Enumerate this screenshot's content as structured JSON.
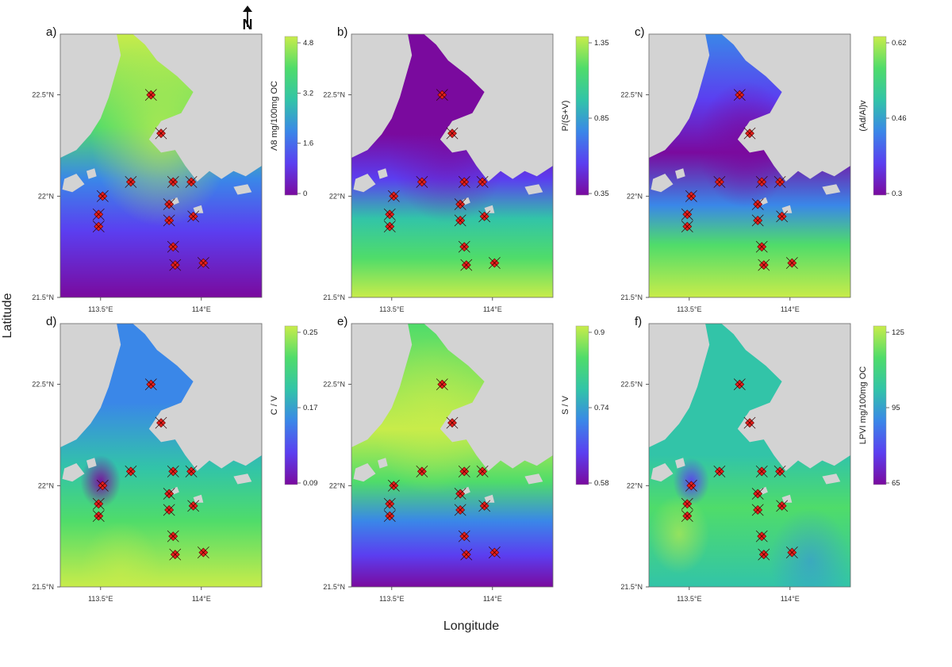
{
  "figure": {
    "north_label": "N",
    "xlabel": "Longitude",
    "ylabel": "Latitude",
    "lat_ticks": [
      "22.5°N",
      "22°N",
      "21.5°N"
    ],
    "lon_ticks": [
      "113.5°E",
      "114°E"
    ]
  },
  "colors": {
    "land": "#d3d3d3",
    "marker": "#e8201c",
    "ramp": [
      "#7a0a9e",
      "#5b3ef0",
      "#3a87e8",
      "#32c4a8",
      "#4fdc6a",
      "#c8ec4a"
    ]
  },
  "panels": [
    {
      "label": "a)",
      "colorbar_title": "Λ8 mg/100mg OC",
      "colorbar_ticks": [
        "4.8",
        "3.2",
        "1.6",
        "0"
      ],
      "field": "a"
    },
    {
      "label": "b)",
      "colorbar_title": "P/(S+V)",
      "colorbar_ticks": [
        "1.35",
        "0.85",
        "0.35"
      ],
      "field": "b"
    },
    {
      "label": "c)",
      "colorbar_title": "(Ad/Al)v",
      "colorbar_ticks": [
        "0.62",
        "0.46",
        "0.3"
      ],
      "field": "c"
    },
    {
      "label": "d)",
      "colorbar_title": "C / V",
      "colorbar_ticks": [
        "0.25",
        "0.17",
        "0.09"
      ],
      "field": "d"
    },
    {
      "label": "e)",
      "colorbar_title": "S / V",
      "colorbar_ticks": [
        "0.9",
        "0.74",
        "0.58"
      ],
      "field": "e"
    },
    {
      "label": "f)",
      "colorbar_title": "LPVI mg/100mg OC",
      "colorbar_ticks": [
        "125",
        "95",
        "65"
      ],
      "field": "f"
    }
  ],
  "stations": [
    {
      "lon": 113.75,
      "lat": 22.5
    },
    {
      "lon": 113.8,
      "lat": 22.31
    },
    {
      "lon": 113.65,
      "lat": 22.07
    },
    {
      "lon": 113.86,
      "lat": 22.07
    },
    {
      "lon": 113.95,
      "lat": 22.07
    },
    {
      "lon": 113.51,
      "lat": 22.0
    },
    {
      "lon": 113.84,
      "lat": 21.96
    },
    {
      "lon": 113.49,
      "lat": 21.91
    },
    {
      "lon": 113.84,
      "lat": 21.88
    },
    {
      "lon": 113.96,
      "lat": 21.9
    },
    {
      "lon": 113.49,
      "lat": 21.85
    },
    {
      "lon": 113.86,
      "lat": 21.75
    },
    {
      "lon": 113.87,
      "lat": 21.66
    },
    {
      "lon": 114.01,
      "lat": 21.67
    }
  ]
}
